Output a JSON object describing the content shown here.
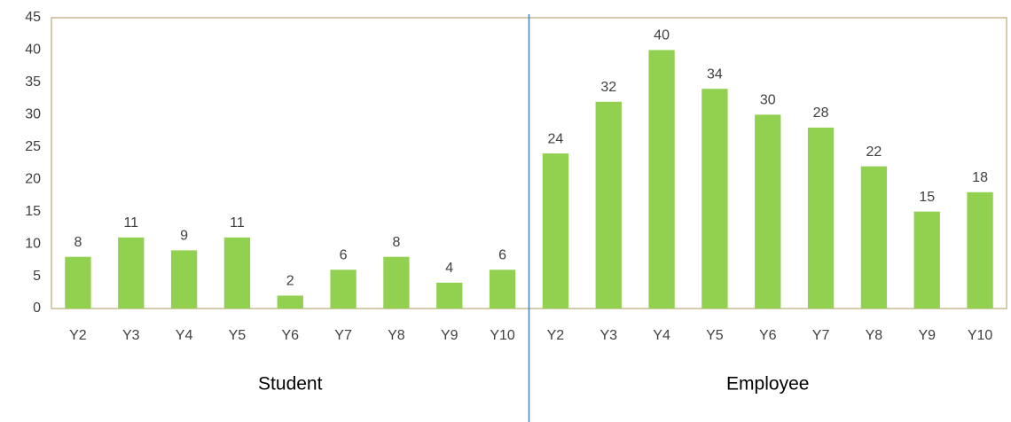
{
  "chart_data": {
    "type": "bar",
    "color": "#92d050",
    "ylim": [
      0,
      45
    ],
    "yticks": [
      0,
      5,
      10,
      15,
      20,
      25,
      30,
      35,
      40,
      45
    ],
    "grid": false,
    "groups": [
      {
        "name": "Student",
        "categories": [
          "Y2",
          "Y3",
          "Y4",
          "Y5",
          "Y6",
          "Y7",
          "Y8",
          "Y9",
          "Y10"
        ],
        "values": [
          8,
          11,
          9,
          11,
          2,
          6,
          8,
          4,
          6
        ]
      },
      {
        "name": "Employee",
        "categories": [
          "Y2",
          "Y3",
          "Y4",
          "Y5",
          "Y6",
          "Y7",
          "Y8",
          "Y9",
          "Y10"
        ],
        "values": [
          24,
          32,
          40,
          34,
          30,
          28,
          22,
          15,
          18
        ]
      }
    ]
  }
}
